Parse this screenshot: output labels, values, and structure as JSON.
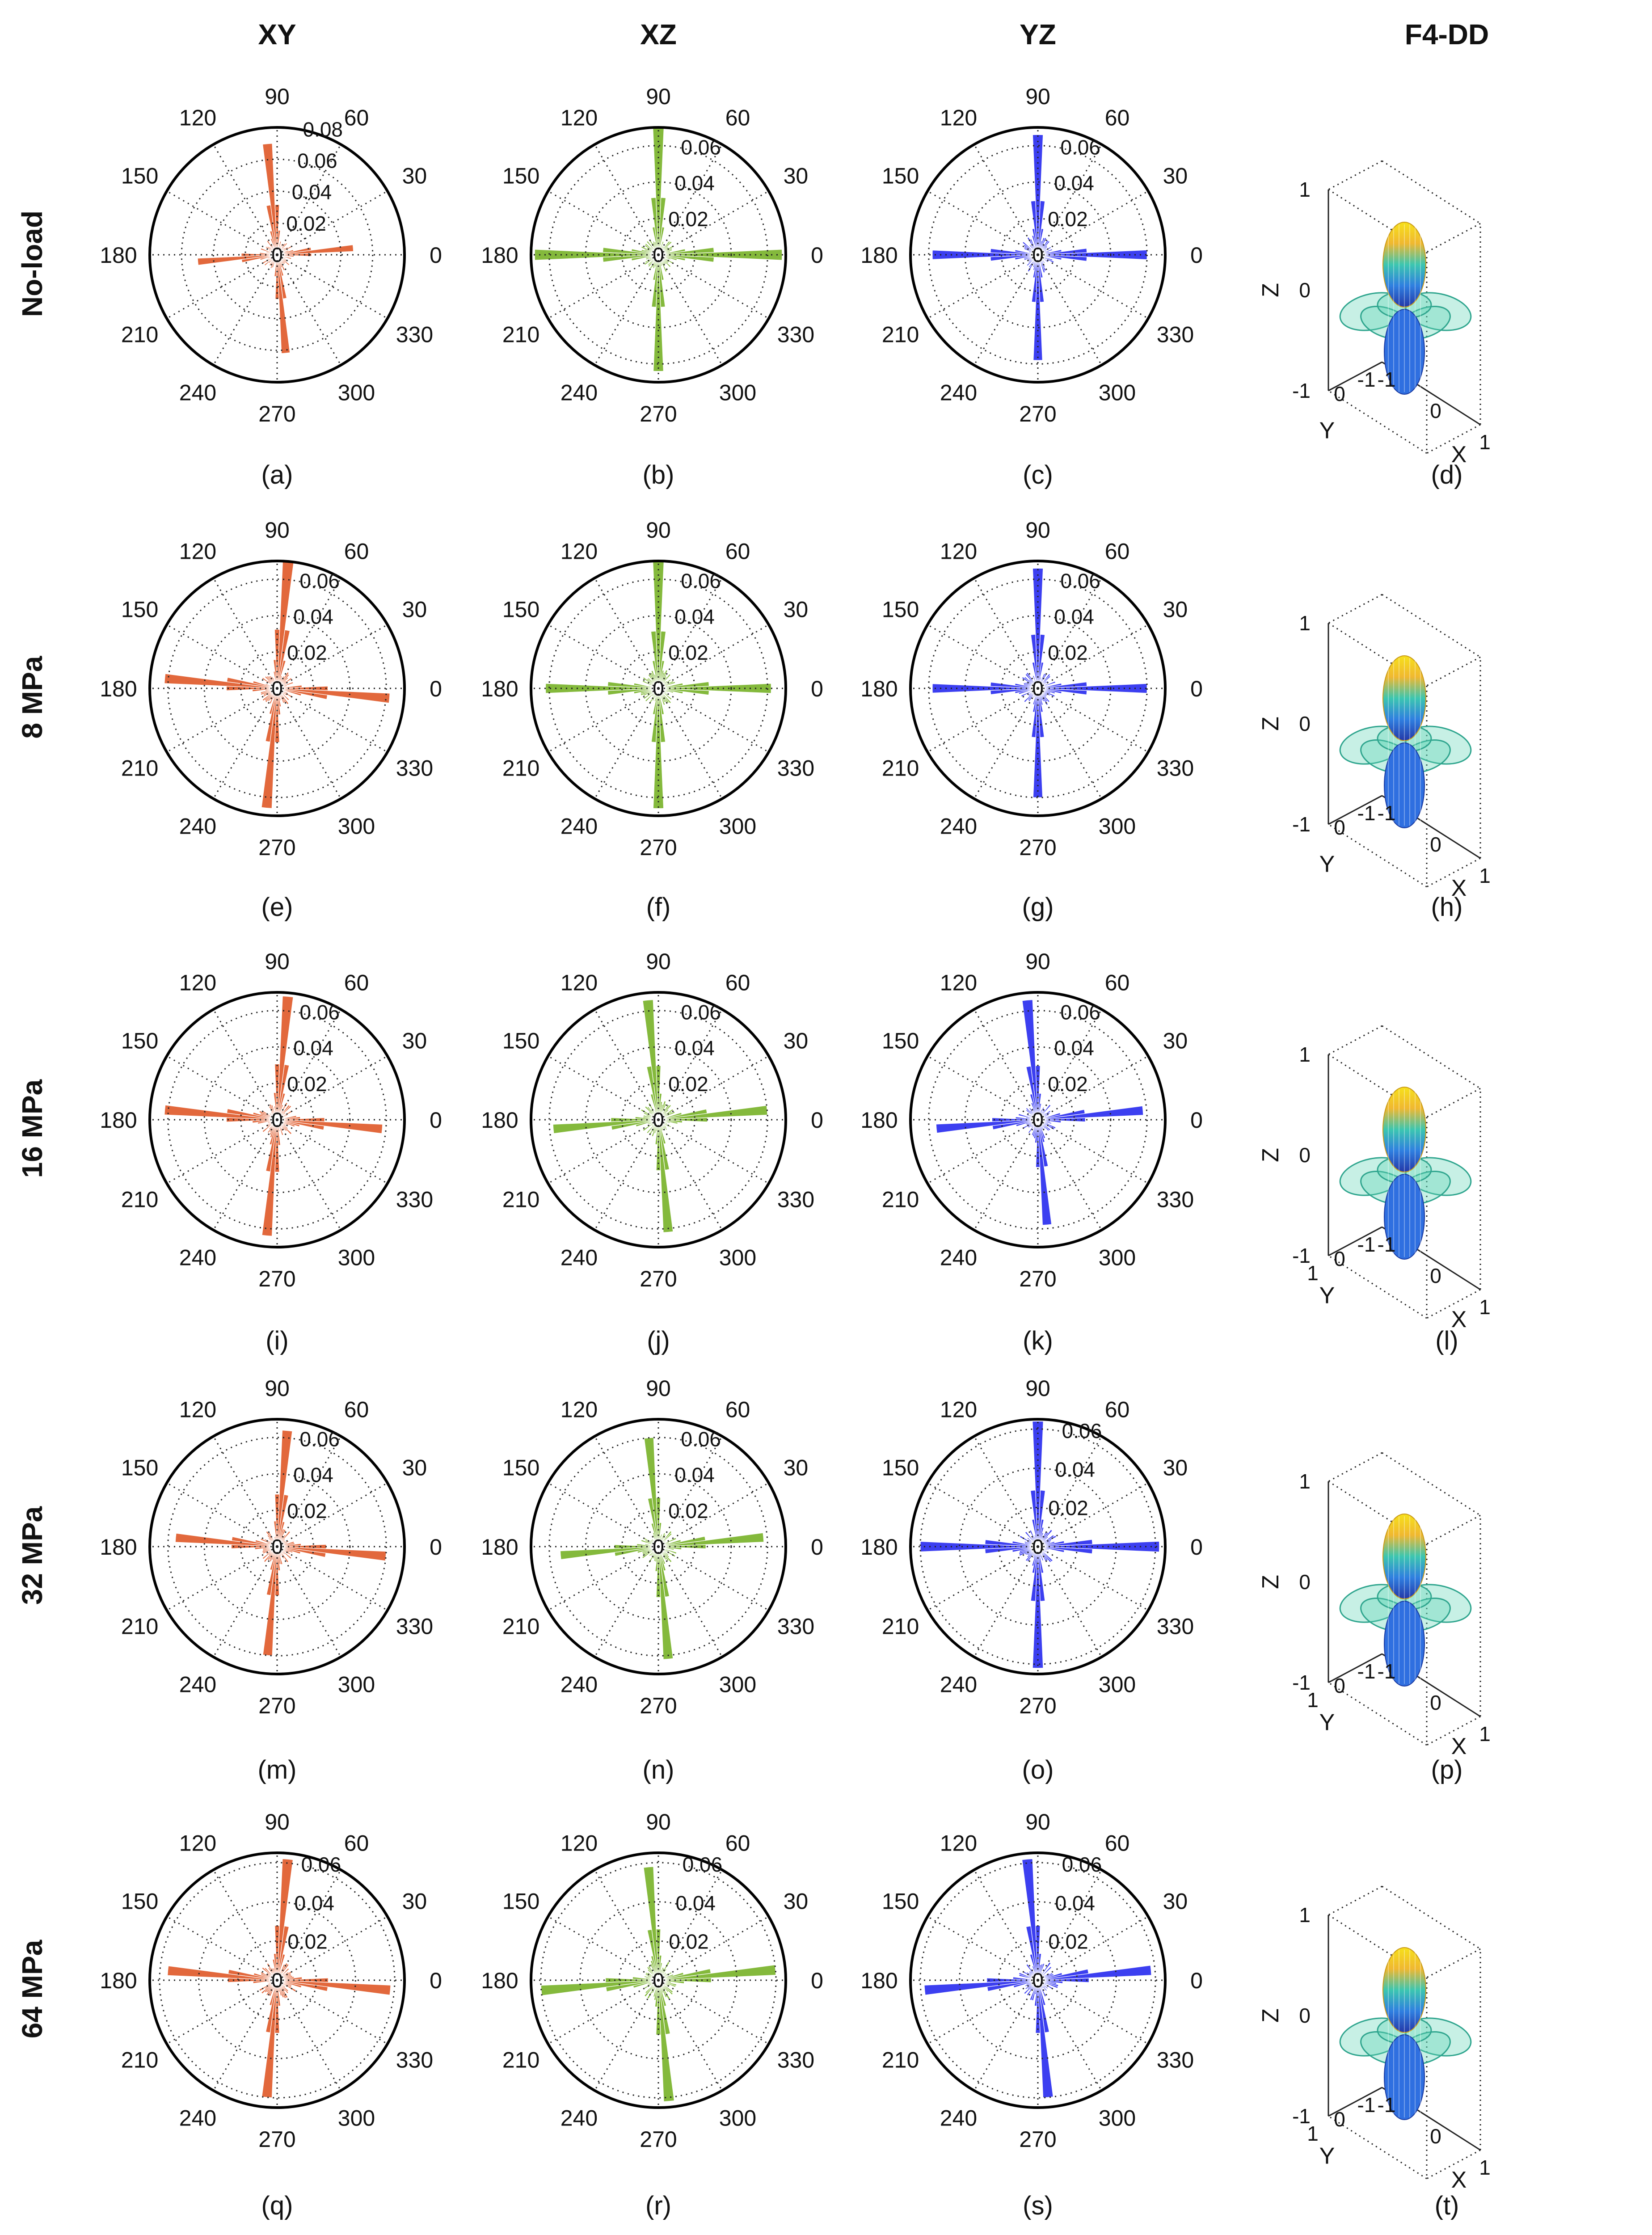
{
  "columns": [
    "XY",
    "XZ",
    "YZ",
    "F4-DD"
  ],
  "rows": [
    "No-load",
    "8 MPa",
    "16 MPa",
    "32 MPa",
    "64 MPa"
  ],
  "panel_labels": [
    "(a)",
    "(b)",
    "(c)",
    "(d)",
    "(e)",
    "(f)",
    "(g)",
    "(h)",
    "(i)",
    "(j)",
    "(k)",
    "(l)",
    "(m)",
    "(n)",
    "(o)",
    "(p)",
    "(q)",
    "(r)",
    "(s)",
    "(t)"
  ],
  "colors": {
    "XY": "#e2683c",
    "XZ": "#84b93c",
    "YZ": "#3c3ff0"
  },
  "chart_data": [
    {
      "panel": "(a)",
      "type": "polar-histogram",
      "plane": "XY",
      "row": "No-load",
      "r_ticks": [
        "0.02",
        "0.04",
        "0.06",
        "0.08"
      ],
      "rlim": [
        0,
        0.08
      ],
      "angle_ticks": [
        "0",
        "30",
        "60",
        "90",
        "120",
        "150",
        "180",
        "210",
        "240",
        "270",
        "300",
        "330"
      ],
      "peaks": [
        0.048,
        0.07,
        0.05,
        0.062
      ],
      "offset": 3
    },
    {
      "panel": "(b)",
      "type": "polar-histogram",
      "plane": "XZ",
      "row": "No-load",
      "r_ticks": [
        "0.02",
        "0.04",
        "0.06"
      ],
      "rlim": [
        0,
        0.07
      ],
      "angle_ticks": [
        "0",
        "30",
        "60",
        "90",
        "120",
        "150",
        "180",
        "210",
        "240",
        "270",
        "300",
        "330"
      ],
      "peaks": [
        0.068,
        0.07,
        0.068,
        0.064
      ],
      "offset": 2
    },
    {
      "panel": "(c)",
      "type": "polar-histogram",
      "plane": "YZ",
      "row": "No-load",
      "r_ticks": [
        "0.02",
        "0.04",
        "0.06"
      ],
      "rlim": [
        0,
        0.07
      ],
      "angle_ticks": [
        "0",
        "30",
        "60",
        "90",
        "120",
        "150",
        "180",
        "210",
        "240",
        "270",
        "300",
        "330"
      ],
      "peaks": [
        0.06,
        0.066,
        0.058,
        0.058
      ],
      "offset": 2
    },
    {
      "panel": "(d)",
      "type": "3d-surface",
      "plane": "F4-DD",
      "row": "No-load",
      "xlabel": "X",
      "ylabel": "Y",
      "zlabel": "Z",
      "x_ticks": [
        "-1",
        "0",
        "1"
      ],
      "y_ticks": [
        "-1",
        "0"
      ],
      "z_ticks": [
        "-1",
        "0",
        "1"
      ]
    },
    {
      "panel": "(e)",
      "type": "polar-histogram",
      "plane": "XY",
      "row": "8 MPa",
      "r_ticks": [
        "0.02",
        "0.04",
        "0.06"
      ],
      "rlim": [
        0,
        0.07
      ],
      "angle_ticks": [
        "0",
        "30",
        "60",
        "90",
        "120",
        "150",
        "180",
        "210",
        "240",
        "270",
        "300",
        "330"
      ],
      "peaks": [
        0.062,
        0.072,
        0.062,
        0.066
      ],
      "offset": -4
    },
    {
      "panel": "(f)",
      "type": "polar-histogram",
      "plane": "XZ",
      "row": "8 MPa",
      "r_ticks": [
        "0.02",
        "0.04",
        "0.06"
      ],
      "rlim": [
        0,
        0.07
      ],
      "angle_ticks": [
        "0",
        "30",
        "60",
        "90",
        "120",
        "150",
        "180",
        "210",
        "240",
        "270",
        "300",
        "330"
      ],
      "peaks": [
        0.062,
        0.07,
        0.062,
        0.066
      ],
      "offset": 2
    },
    {
      "panel": "(g)",
      "type": "polar-histogram",
      "plane": "YZ",
      "row": "8 MPa",
      "r_ticks": [
        "0.02",
        "0.04",
        "0.06"
      ],
      "rlim": [
        0,
        0.07
      ],
      "angle_ticks": [
        "0",
        "30",
        "60",
        "90",
        "120",
        "150",
        "180",
        "210",
        "240",
        "270",
        "300",
        "330"
      ],
      "peaks": [
        0.06,
        0.066,
        0.058,
        0.06
      ],
      "offset": 2
    },
    {
      "panel": "(h)",
      "type": "3d-surface",
      "plane": "F4-DD",
      "row": "8 MPa",
      "xlabel": "X",
      "ylabel": "Y",
      "zlabel": "Z",
      "x_ticks": [
        "-1",
        "0",
        "1"
      ],
      "y_ticks": [
        "-1",
        "0"
      ],
      "z_ticks": [
        "-1",
        "0",
        "1"
      ]
    },
    {
      "panel": "(i)",
      "type": "polar-histogram",
      "plane": "XY",
      "row": "16 MPa",
      "r_ticks": [
        "0.02",
        "0.04",
        "0.06"
      ],
      "rlim": [
        0,
        0.07
      ],
      "angle_ticks": [
        "0",
        "30",
        "60",
        "90",
        "120",
        "150",
        "180",
        "210",
        "240",
        "270",
        "300",
        "330"
      ],
      "peaks": [
        0.058,
        0.068,
        0.062,
        0.064
      ],
      "offset": -4
    },
    {
      "panel": "(j)",
      "type": "polar-histogram",
      "plane": "XZ",
      "row": "16 MPa",
      "r_ticks": [
        "0.02",
        "0.04",
        "0.06"
      ],
      "rlim": [
        0,
        0.07
      ],
      "angle_ticks": [
        "0",
        "30",
        "60",
        "90",
        "120",
        "150",
        "180",
        "210",
        "240",
        "270",
        "300",
        "330"
      ],
      "peaks": [
        0.06,
        0.066,
        0.058,
        0.062
      ],
      "offset": 3
    },
    {
      "panel": "(k)",
      "type": "polar-histogram",
      "plane": "YZ",
      "row": "16 MPa",
      "r_ticks": [
        "0.02",
        "0.04",
        "0.06"
      ],
      "rlim": [
        0,
        0.07
      ],
      "angle_ticks": [
        "0",
        "30",
        "60",
        "90",
        "120",
        "150",
        "180",
        "210",
        "240",
        "270",
        "300",
        "330"
      ],
      "peaks": [
        0.058,
        0.066,
        0.056,
        0.058
      ],
      "offset": 3
    },
    {
      "panel": "(l)",
      "type": "3d-surface",
      "plane": "F4-DD",
      "row": "16 MPa",
      "xlabel": "X",
      "ylabel": "Y",
      "zlabel": "Z",
      "x_ticks": [
        "-1",
        "0",
        "1"
      ],
      "y_ticks": [
        "-1",
        "0",
        "1"
      ],
      "z_ticks": [
        "-1",
        "0",
        "1"
      ]
    },
    {
      "panel": "(m)",
      "type": "polar-histogram",
      "plane": "XY",
      "row": "32 MPa",
      "r_ticks": [
        "0.02",
        "0.04",
        "0.06"
      ],
      "rlim": [
        0,
        0.07
      ],
      "angle_ticks": [
        "0",
        "30",
        "60",
        "90",
        "120",
        "150",
        "180",
        "210",
        "240",
        "270",
        "300",
        "330"
      ],
      "peaks": [
        0.06,
        0.064,
        0.056,
        0.06
      ],
      "offset": -4
    },
    {
      "panel": "(n)",
      "type": "polar-histogram",
      "plane": "XZ",
      "row": "32 MPa",
      "r_ticks": [
        "0.02",
        "0.04",
        "0.06"
      ],
      "rlim": [
        0,
        0.07
      ],
      "angle_ticks": [
        "0",
        "30",
        "60",
        "90",
        "120",
        "150",
        "180",
        "210",
        "240",
        "270",
        "300",
        "330"
      ],
      "peaks": [
        0.058,
        0.06,
        0.054,
        0.062
      ],
      "offset": 3
    },
    {
      "panel": "(o)",
      "type": "polar-histogram",
      "plane": "YZ",
      "row": "32 MPa",
      "r_ticks": [
        "0.02",
        "0.04",
        "0.06"
      ],
      "rlim": [
        0,
        0.065
      ],
      "angle_ticks": [
        "0",
        "30",
        "60",
        "90",
        "120",
        "150",
        "180",
        "210",
        "240",
        "270",
        "300",
        "330"
      ],
      "peaks": [
        0.062,
        0.064,
        0.06,
        0.062
      ],
      "offset": -2
    },
    {
      "panel": "(p)",
      "type": "3d-surface",
      "plane": "F4-DD",
      "row": "32 MPa",
      "xlabel": "X",
      "ylabel": "Y",
      "zlabel": "Z",
      "x_ticks": [
        "-1",
        "0",
        "1"
      ],
      "y_ticks": [
        "-1",
        "0",
        "1"
      ],
      "z_ticks": [
        "-1",
        "0",
        "1"
      ]
    },
    {
      "panel": "(q)",
      "type": "polar-histogram",
      "plane": "XY",
      "row": "64 MPa",
      "r_ticks": [
        "0.02",
        "0.04",
        "0.06"
      ],
      "rlim": [
        0,
        0.065
      ],
      "angle_ticks": [
        "0",
        "30",
        "60",
        "90",
        "120",
        "150",
        "180",
        "210",
        "240",
        "270",
        "300",
        "330"
      ],
      "peaks": [
        0.058,
        0.062,
        0.056,
        0.06
      ],
      "offset": -4
    },
    {
      "panel": "(r)",
      "type": "polar-histogram",
      "plane": "XZ",
      "row": "64 MPa",
      "r_ticks": [
        "0.02",
        "0.04",
        "0.06"
      ],
      "rlim": [
        0,
        0.065
      ],
      "angle_ticks": [
        "0",
        "30",
        "60",
        "90",
        "120",
        "150",
        "180",
        "210",
        "240",
        "270",
        "300",
        "330"
      ],
      "peaks": [
        0.06,
        0.058,
        0.06,
        0.062
      ],
      "offset": 3
    },
    {
      "panel": "(s)",
      "type": "polar-histogram",
      "plane": "YZ",
      "row": "64 MPa",
      "r_ticks": [
        "0.02",
        "0.04",
        "0.06"
      ],
      "rlim": [
        0,
        0.065
      ],
      "angle_ticks": [
        "0",
        "30",
        "60",
        "90",
        "120",
        "150",
        "180",
        "210",
        "240",
        "270",
        "300",
        "330"
      ],
      "peaks": [
        0.058,
        0.062,
        0.058,
        0.06
      ],
      "offset": 3
    },
    {
      "panel": "(t)",
      "type": "3d-surface",
      "plane": "F4-DD",
      "row": "64 MPa",
      "xlabel": "X",
      "ylabel": "Y",
      "zlabel": "Z",
      "x_ticks": [
        "-1",
        "0",
        "1"
      ],
      "y_ticks": [
        "-1",
        "0",
        "1"
      ],
      "z_ticks": [
        "-1",
        "0",
        "1"
      ]
    }
  ]
}
